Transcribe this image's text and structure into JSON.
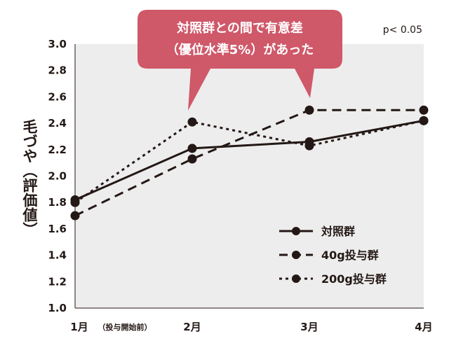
{
  "chart_data": {
    "type": "line",
    "title": "",
    "ylabel": "毛づや（評価値）",
    "ylim": [
      1.0,
      3.0
    ],
    "yticks": [
      "1.0",
      "1.2",
      "1.4",
      "1.6",
      "1.8",
      "2.0",
      "2.2",
      "2.4",
      "2.6",
      "2.8",
      "3.0"
    ],
    "categories": [
      "1月",
      "2月",
      "3月",
      "4月"
    ],
    "category_note": "（投与開始前）",
    "series": [
      {
        "name": "対照群",
        "style": "solid",
        "values": [
          1.82,
          2.21,
          2.26,
          2.42
        ]
      },
      {
        "name": "40g投与群",
        "style": "dashed",
        "values": [
          1.7,
          2.13,
          2.5,
          2.5
        ]
      },
      {
        "name": "200g投与群",
        "style": "dotted",
        "values": [
          1.8,
          2.41,
          2.23,
          2.42
        ]
      }
    ],
    "annotation": {
      "line1": "対照群との間で有意差",
      "line2": "（優位水準5%）があった"
    },
    "pvalue": "p< 0.05",
    "legend_position": "bottom-right",
    "grid": false,
    "colors": {
      "line": "#231815",
      "plot_bg": "#ededed",
      "callout": "#cf5869"
    }
  }
}
